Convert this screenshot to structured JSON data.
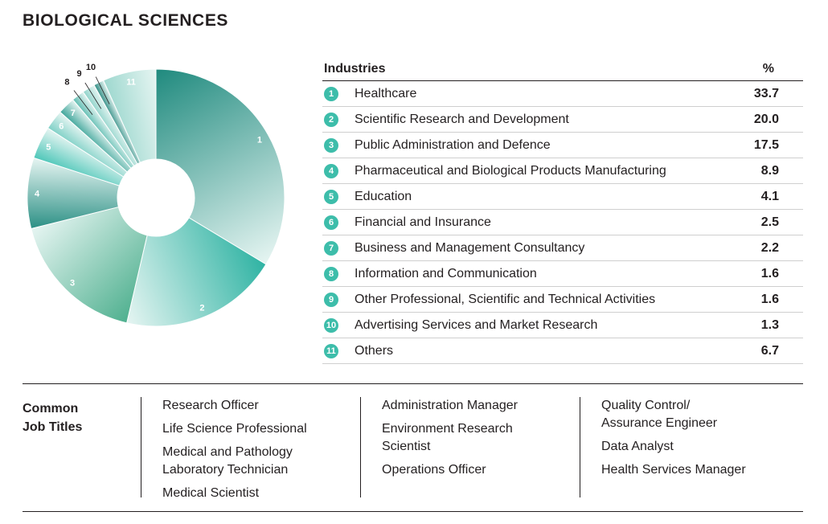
{
  "title": "BIOLOGICAL SCIENCES",
  "table": {
    "header_industry": "Industries",
    "header_percent": "%",
    "rows": [
      {
        "num": "1",
        "label": "Healthcare",
        "value": "33.7"
      },
      {
        "num": "2",
        "label": "Scientific Research and Development",
        "value": "20.0"
      },
      {
        "num": "3",
        "label": "Public Administration and Defence",
        "value": "17.5"
      },
      {
        "num": "4",
        "label": "Pharmaceutical and Biological Products Manufacturing",
        "value": "8.9"
      },
      {
        "num": "5",
        "label": "Education",
        "value": "4.1"
      },
      {
        "num": "6",
        "label": "Financial and Insurance",
        "value": "2.5"
      },
      {
        "num": "7",
        "label": "Business and Management Consultancy",
        "value": "2.2"
      },
      {
        "num": "8",
        "label": "Information and Communication",
        "value": "1.6"
      },
      {
        "num": "9",
        "label": "Other Professional, Scientific and Technical Activities",
        "value": "1.6"
      },
      {
        "num": "10",
        "label": "Advertising Services and Market Research",
        "value": "1.3"
      },
      {
        "num": "11",
        "label": "Others",
        "value": "6.7"
      }
    ]
  },
  "jobs": {
    "label_line1": "Common",
    "label_line2": "Job Titles",
    "col1": [
      "Research Officer",
      "Life Science Professional",
      "Medical and Pathology",
      "Laboratory Technician",
      "Medical Scientist"
    ],
    "col2": [
      "Administration Manager",
      "Environment Research",
      "Scientist",
      "Operations Officer"
    ],
    "col3": [
      "Quality Control/",
      "Assurance Engineer",
      "Data Analyst",
      "Health Services Manager"
    ]
  },
  "chart_data": {
    "type": "pie",
    "donut": true,
    "labels": [
      "1",
      "2",
      "3",
      "4",
      "5",
      "6",
      "7",
      "8",
      "9",
      "10",
      "11"
    ],
    "values": [
      33.7,
      20.0,
      17.5,
      8.9,
      4.1,
      2.5,
      2.2,
      1.6,
      1.6,
      1.3,
      6.7
    ],
    "colors": [
      "#1f8a7e",
      "#2fb3a3",
      "#4fb08f",
      "#2a8f84",
      "#4cc6b8",
      "#7ed0c6",
      "#3ea59a",
      "#5dbcb1",
      "#8fd3ca",
      "#2e8c83",
      "#9ed8cf"
    ]
  }
}
